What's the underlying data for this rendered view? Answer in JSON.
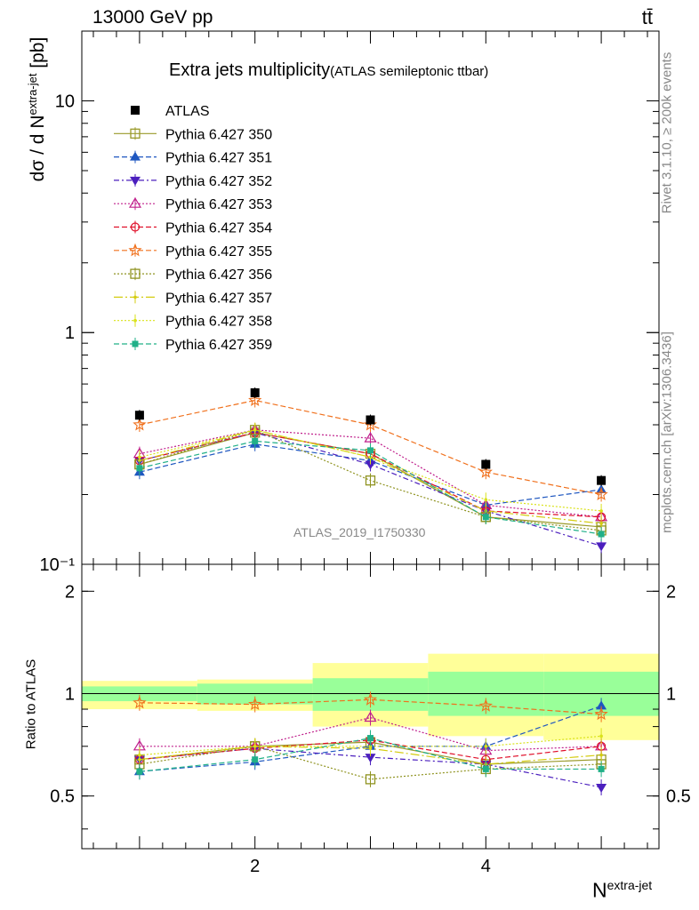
{
  "header": {
    "energy_label": "13000 GeV pp",
    "process_label": "tt̄"
  },
  "title": {
    "main": "Extra jets multiplicity",
    "sub": "(ATLAS semileptonic ttbar)"
  },
  "side_text": {
    "rivet": "Rivet 3.1.10, ≥ 200k events",
    "mcplots": "mcplots.cern.ch [arXiv:1306.3436]"
  },
  "watermark": "ATLAS_2019_I1750330",
  "axes": {
    "main_ylabel_base": "dσ / d N",
    "main_ylabel_sup": "extra-jet",
    "main_ylabel_unit": "[pb]",
    "ratio_ylabel": "Ratio to ATLAS",
    "xlabel_base": "N",
    "xlabel_sup": "extra-jet"
  },
  "colors": {
    "ATLAS": "#000000",
    "350": "#9a9a2a",
    "351": "#1f57c0",
    "352": "#4b1fbe",
    "353": "#c0208c",
    "354": "#e0102a",
    "355": "#f0701c",
    "356": "#8f9320",
    "357": "#d4cc10",
    "358": "#d9e21a",
    "359": "#20b088",
    "band_inner": "#99ff99",
    "band_outer": "#ffff99"
  },
  "chart_data": {
    "type": "line",
    "main": {
      "ylabel": "dσ / d N extra-jet [pb]",
      "ylim": [
        0.1,
        20
      ],
      "yscale": "log",
      "xlim": [
        0.5,
        5.5
      ],
      "yticks": [
        {
          "v": 0.1,
          "label": "10⁻¹"
        },
        {
          "v": 1,
          "label": "1"
        },
        {
          "v": 10,
          "label": "10"
        }
      ],
      "x": [
        1,
        2,
        3,
        4,
        5
      ],
      "data": {
        "name": "ATLAS",
        "values": [
          0.44,
          0.55,
          0.42,
          0.27,
          0.23
        ]
      },
      "series": [
        {
          "name": "Pythia 6.427 350",
          "key": "350",
          "marker": "open-square",
          "dash": "solid",
          "values": [
            0.27,
            0.37,
            0.3,
            0.16,
            0.145
          ]
        },
        {
          "name": "Pythia 6.427 351",
          "key": "351",
          "marker": "filled-triangle-up",
          "dash": "6,3",
          "values": [
            0.25,
            0.33,
            0.28,
            0.18,
            0.21
          ]
        },
        {
          "name": "Pythia 6.427 352",
          "key": "352",
          "marker": "filled-triangle-down",
          "dash": "6,3,2,3",
          "values": [
            0.28,
            0.37,
            0.27,
            0.17,
            0.12
          ]
        },
        {
          "name": "Pythia 6.427 353",
          "key": "353",
          "marker": "open-triangle-up",
          "dash": "2,2",
          "values": [
            0.3,
            0.38,
            0.35,
            0.18,
            0.16
          ]
        },
        {
          "name": "Pythia 6.427 354",
          "key": "354",
          "marker": "open-circle",
          "dash": "6,3",
          "values": [
            0.28,
            0.37,
            0.3,
            0.17,
            0.16
          ]
        },
        {
          "name": "Pythia 6.427 355",
          "key": "355",
          "marker": "open-star",
          "dash": "6,3",
          "values": [
            0.4,
            0.51,
            0.4,
            0.25,
            0.2
          ]
        },
        {
          "name": "Pythia 6.427 356",
          "key": "356",
          "marker": "open-square",
          "dash": "2,2",
          "values": [
            0.27,
            0.38,
            0.23,
            0.16,
            0.14
          ]
        },
        {
          "name": "Pythia 6.427 357",
          "key": "357",
          "marker": "small-dot",
          "dash": "10,3,2,3",
          "values": [
            0.28,
            0.38,
            0.29,
            0.17,
            0.15
          ]
        },
        {
          "name": "Pythia 6.427 358",
          "key": "358",
          "marker": "small-dot",
          "dash": "2,2",
          "values": [
            0.29,
            0.38,
            0.29,
            0.19,
            0.17
          ]
        },
        {
          "name": "Pythia 6.427 359",
          "key": "359",
          "marker": "filled-square-small",
          "dash": "6,3",
          "values": [
            0.26,
            0.34,
            0.31,
            0.16,
            0.135
          ]
        }
      ]
    },
    "ratio": {
      "ylabel": "Ratio to ATLAS",
      "ylim": [
        0.35,
        2.4
      ],
      "yscale": "log",
      "yticks": [
        {
          "v": 0.5,
          "label": "0.5"
        },
        {
          "v": 1,
          "label": "1"
        },
        {
          "v": 2,
          "label": "2"
        }
      ],
      "bands": {
        "bins": [
          [
            0.5,
            1.5
          ],
          [
            1.5,
            2.5
          ],
          [
            2.5,
            3.5
          ],
          [
            3.5,
            4.5
          ],
          [
            4.5,
            5.5
          ]
        ],
        "inner": [
          [
            0.95,
            1.05
          ],
          [
            0.93,
            1.07
          ],
          [
            0.89,
            1.11
          ],
          [
            0.86,
            1.16
          ],
          [
            0.86,
            1.16
          ]
        ],
        "outer": [
          [
            0.9,
            1.09
          ],
          [
            0.89,
            1.1
          ],
          [
            0.8,
            1.23
          ],
          [
            0.75,
            1.31
          ],
          [
            0.73,
            1.31
          ]
        ]
      },
      "series": [
        {
          "key": "350",
          "values": [
            0.64,
            0.7,
            0.72,
            0.62,
            0.64
          ]
        },
        {
          "key": "351",
          "values": [
            0.59,
            0.63,
            0.7,
            0.7,
            0.92
          ]
        },
        {
          "key": "352",
          "values": [
            0.64,
            0.69,
            0.65,
            0.62,
            0.53
          ]
        },
        {
          "key": "353",
          "values": [
            0.7,
            0.7,
            0.85,
            0.68,
            0.7
          ]
        },
        {
          "key": "354",
          "values": [
            0.64,
            0.69,
            0.73,
            0.64,
            0.7
          ]
        },
        {
          "key": "355",
          "values": [
            0.94,
            0.93,
            0.96,
            0.92,
            0.87
          ]
        },
        {
          "key": "356",
          "values": [
            0.62,
            0.7,
            0.56,
            0.6,
            0.62
          ]
        },
        {
          "key": "357",
          "values": [
            0.64,
            0.7,
            0.69,
            0.62,
            0.66
          ]
        },
        {
          "key": "358",
          "values": [
            0.66,
            0.7,
            0.7,
            0.7,
            0.75
          ]
        },
        {
          "key": "359",
          "values": [
            0.59,
            0.64,
            0.74,
            0.6,
            0.6
          ]
        }
      ]
    },
    "xticks": [
      {
        "v": 2,
        "label": "2"
      },
      {
        "v": 4,
        "label": "4"
      }
    ],
    "legend_position": "top-left"
  }
}
